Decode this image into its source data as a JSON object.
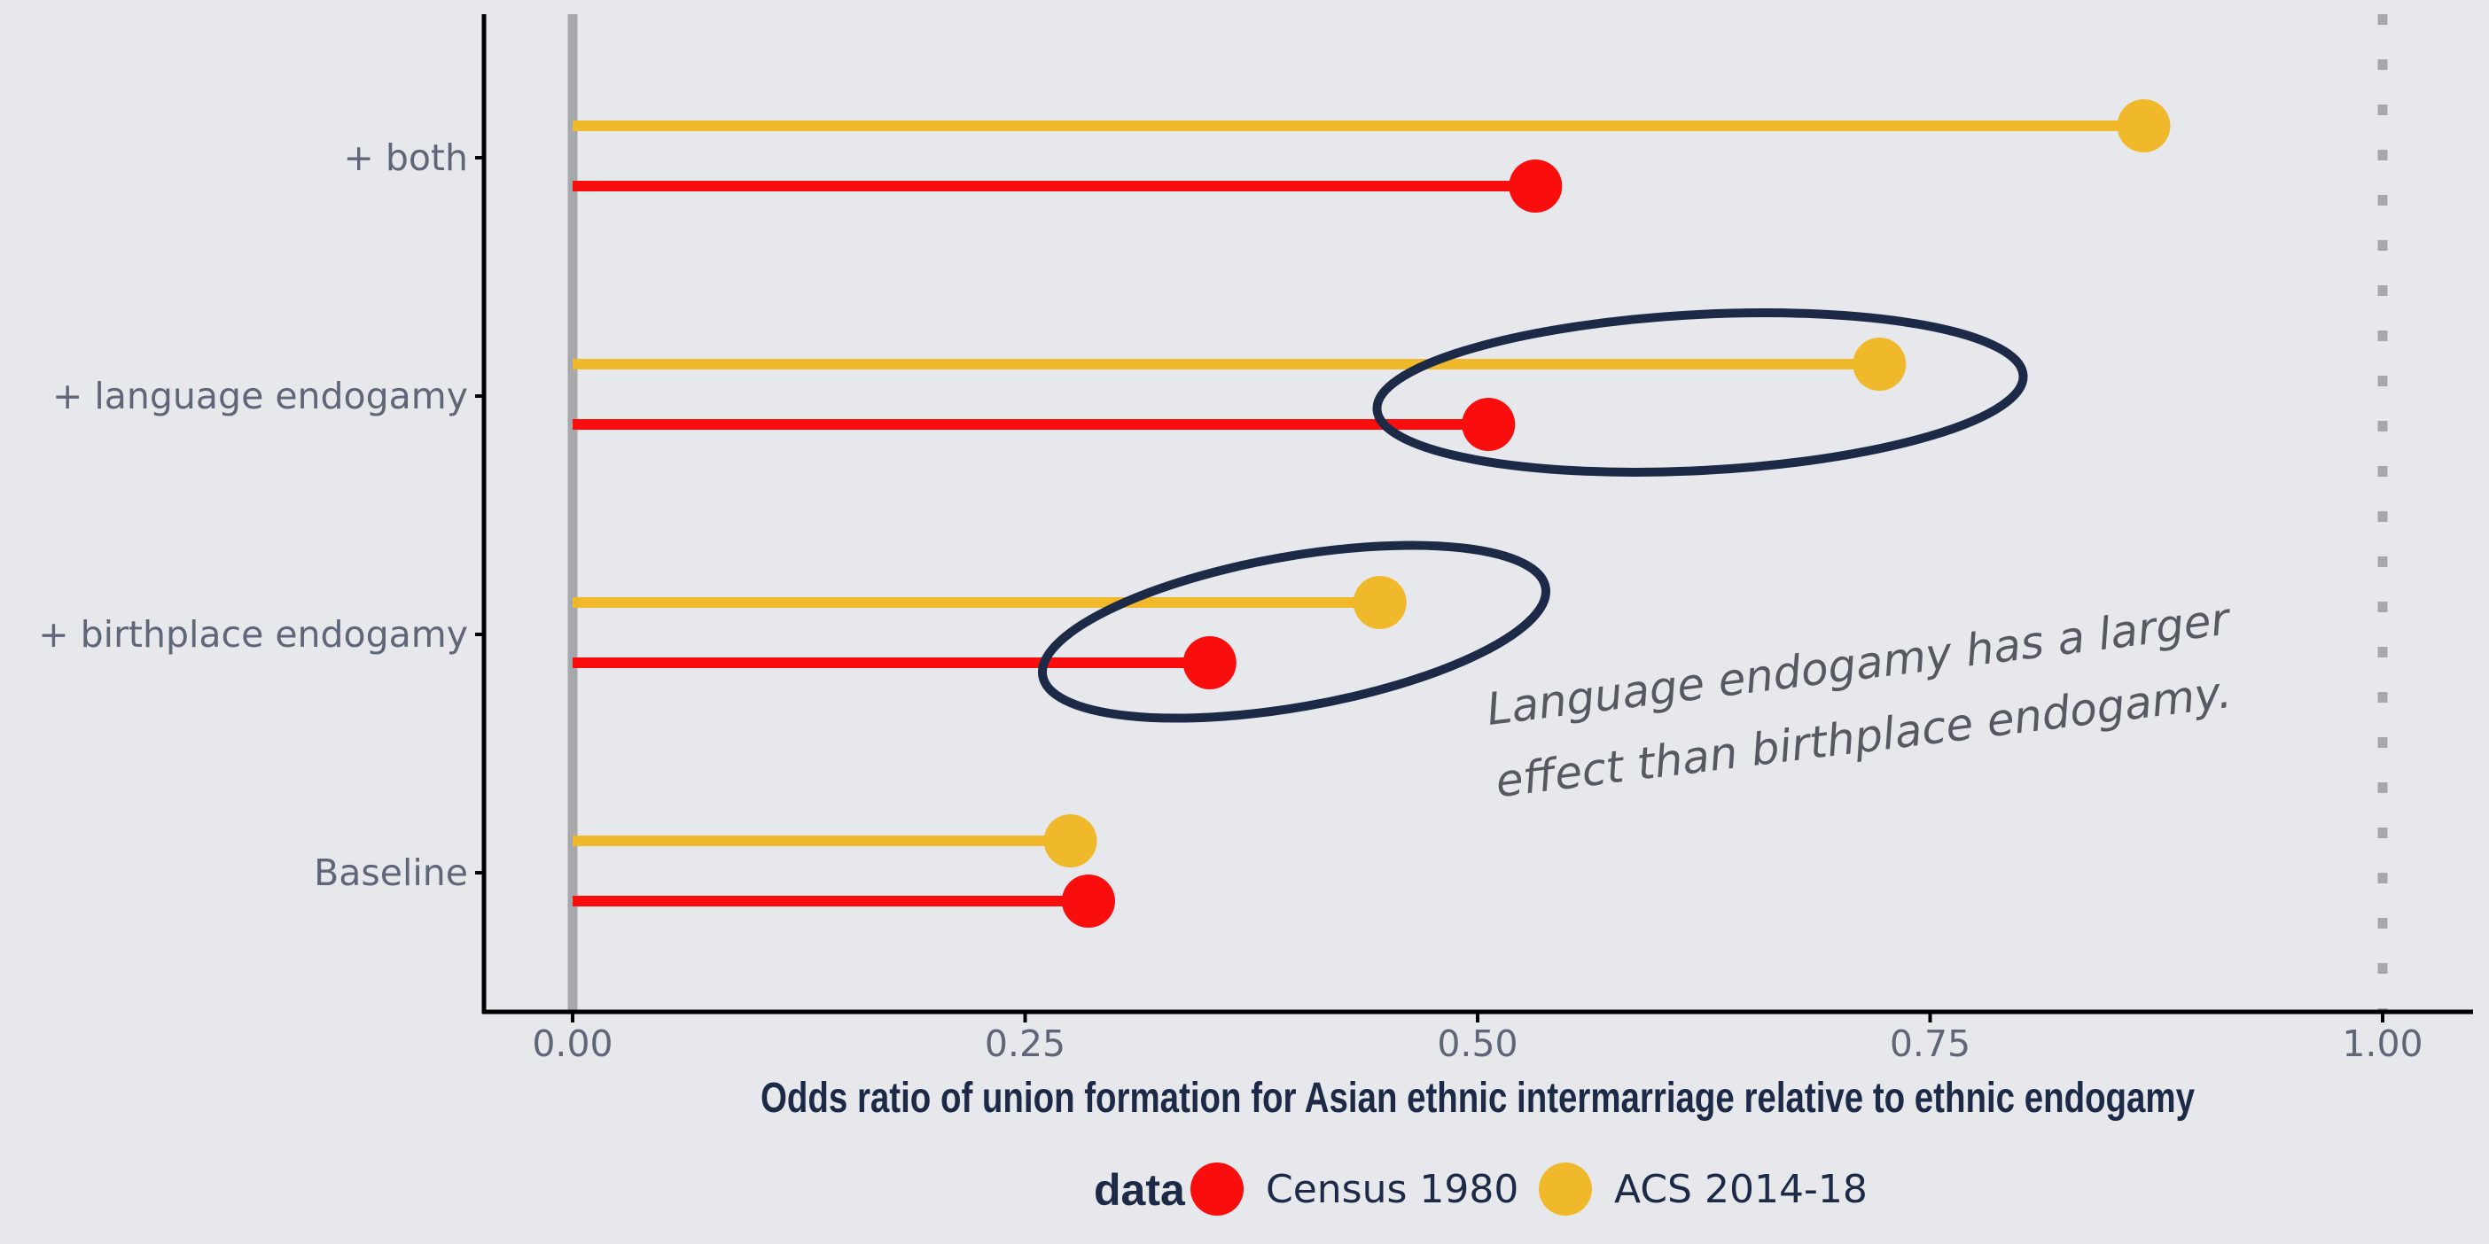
{
  "chart_data": {
    "type": "lollipop",
    "orientation": "horizontal",
    "categories": [
      "+ both",
      "+ language endogamy",
      "+ birthplace endogamy",
      "Baseline"
    ],
    "series": [
      {
        "name": "ACS 2014-18",
        "color": "#f0b92c",
        "values": [
          0.868,
          0.722,
          0.446,
          0.275
        ]
      },
      {
        "name": "Census 1980",
        "color": "#fa0d0d",
        "values": [
          0.532,
          0.506,
          0.352,
          0.285
        ]
      }
    ],
    "xlim": [
      0,
      1
    ],
    "xticks": [
      0,
      0.25,
      0.5,
      0.75,
      1
    ],
    "xtick_labels": [
      "0.00",
      "0.25",
      "0.50",
      "0.75",
      "1.00"
    ],
    "xlabel": "Odds ratio of union formation for Asian ethnic intermarriage relative to ethnic endogamy",
    "reference_line": {
      "x": 1,
      "style": "dotted",
      "color": "#a6a8ab"
    },
    "zero_line": {
      "x": 0,
      "color": "#a6a8ab"
    },
    "legend": {
      "title": "data",
      "position": "bottom",
      "entries": [
        {
          "label": "Census 1980",
          "color": "#fa0d0d"
        },
        {
          "label": "ACS 2014-18",
          "color": "#f0b92c"
        }
      ]
    },
    "annotation": {
      "lines": [
        "Language endogamy has a larger",
        "effect than birthplace endogamy."
      ],
      "highlighted_categories": [
        "+ language endogamy",
        "+ birthplace endogamy"
      ],
      "outline_color": "#1d2a47"
    }
  }
}
